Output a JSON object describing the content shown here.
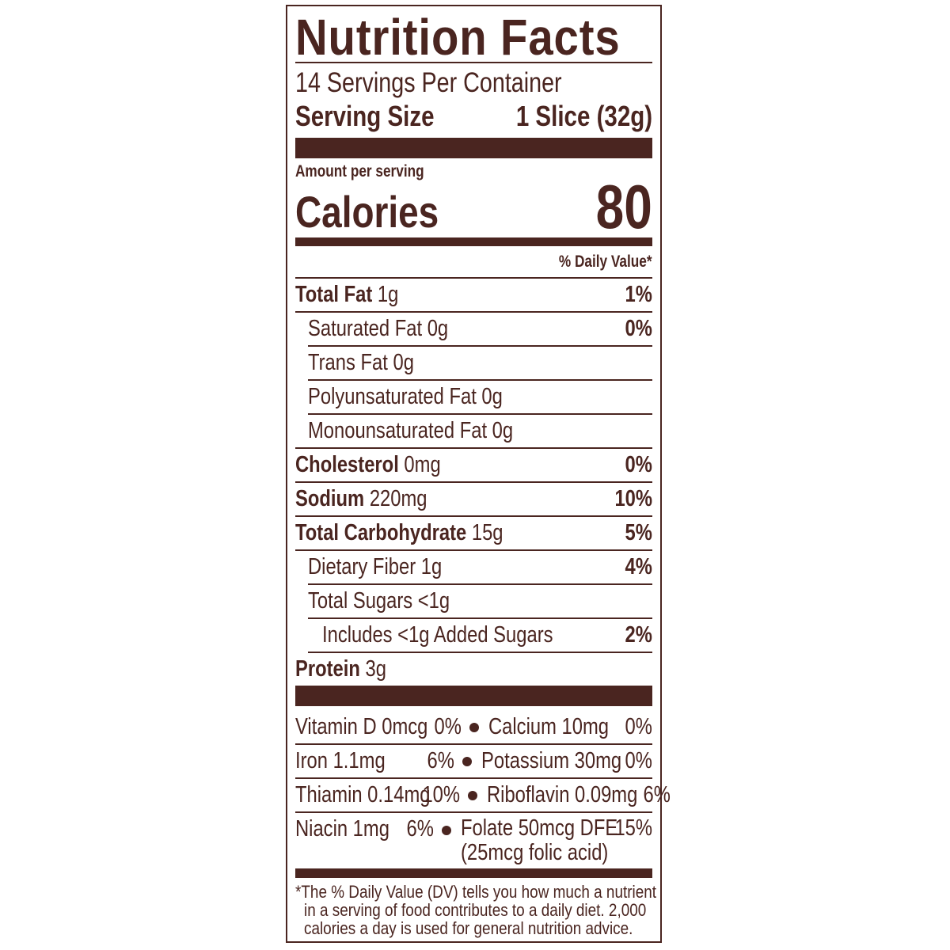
{
  "title": "Nutrition Facts",
  "servings_per_container": "14 Servings Per Container",
  "serving_size": {
    "label": "Serving Size",
    "value": "1 Slice (32g)"
  },
  "amount_per_serving": "Amount per serving",
  "calories": {
    "label": "Calories",
    "value": "80"
  },
  "daily_value_header": "% Daily Value*",
  "nutrients": [
    {
      "name": "Total Fat",
      "amount": "1g",
      "dv": "1%"
    },
    {
      "name": "Saturated Fat 0g",
      "amount": "",
      "dv": "0%"
    },
    {
      "name": "Trans Fat 0g",
      "amount": "",
      "dv": ""
    },
    {
      "name": "Polyunsaturated Fat 0g",
      "amount": "",
      "dv": ""
    },
    {
      "name": "Monounsaturated Fat 0g",
      "amount": "",
      "dv": ""
    },
    {
      "name": "Cholesterol",
      "amount": "0mg",
      "dv": "0%"
    },
    {
      "name": "Sodium",
      "amount": "220mg",
      "dv": "10%"
    },
    {
      "name": "Total Carbohydrate",
      "amount": "15g",
      "dv": "5%"
    },
    {
      "name": "Dietary Fiber 1g",
      "amount": "",
      "dv": "4%"
    },
    {
      "name": "Total Sugars <1g",
      "amount": "",
      "dv": ""
    },
    {
      "name": "Includes <1g Added Sugars",
      "amount": "",
      "dv": "2%"
    },
    {
      "name": "Protein",
      "amount": "3g",
      "dv": ""
    }
  ],
  "vitamins": [
    {
      "left": {
        "name": "Vitamin D 0mcg",
        "dv": "0%"
      },
      "right": {
        "name": "Calcium 10mg",
        "dv": "0%"
      }
    },
    {
      "left": {
        "name": "Iron 1.1mg",
        "dv": "6%"
      },
      "right": {
        "name": "Potassium 30mg",
        "dv": "0%"
      }
    },
    {
      "left": {
        "name": "Thiamin 0.14mg",
        "dv": "10%"
      },
      "right": {
        "name": "Riboflavin 0.09mg",
        "dv": "6%"
      }
    },
    {
      "left": {
        "name": "Niacin 1mg",
        "dv": "6%"
      },
      "right": {
        "name": "Folate 50mcg DFE",
        "dv": "15%",
        "note": "(25mcg folic acid)"
      }
    }
  ],
  "footnote": [
    "*The % Daily Value (DV) tells you how much a nutrient",
    "in a serving of food contributes to a daily diet. 2,000",
    "calories a day is used for general nutrition advice."
  ],
  "colors": {
    "ink": "#4a2520",
    "background": "#ffffff"
  }
}
